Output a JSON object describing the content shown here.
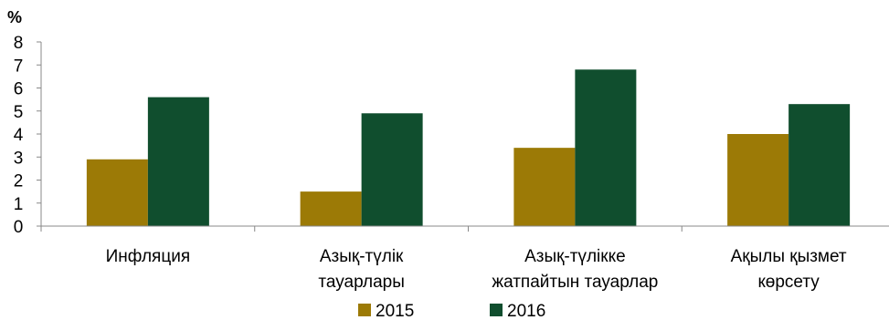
{
  "chart_data": {
    "type": "bar",
    "y_unit": "%",
    "categories": [
      [
        "Инфляция"
      ],
      [
        "Азық-түлік",
        "тауарлары"
      ],
      [
        "Азық-түлікке",
        "жатпайтын тауарлар"
      ],
      [
        "Ақылы қызмет",
        "көрсету"
      ]
    ],
    "series": [
      {
        "name": "2015",
        "color": "#9c7a06",
        "values": [
          2.9,
          1.5,
          3.4,
          4.0
        ]
      },
      {
        "name": "2016",
        "color": "#104e2e",
        "values": [
          5.6,
          4.9,
          6.8,
          5.3
        ]
      }
    ],
    "ylim": [
      0,
      8
    ],
    "yticks": [
      0,
      1,
      2,
      3,
      4,
      5,
      6,
      7,
      8
    ],
    "grid": false,
    "legend_position": "bottom"
  }
}
